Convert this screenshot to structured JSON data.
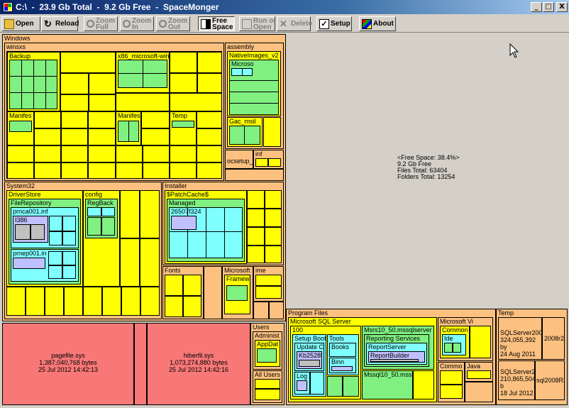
{
  "window": {
    "title": "C:\\  -  23.9 Gb Total  -  9.2 Gb Free  -  SpaceMonger",
    "minimize": "_",
    "maximize": "□",
    "close": "X"
  },
  "toolbar": {
    "open": "Open",
    "reload": "Reload",
    "zoom_full": "Zoom\nFull",
    "zoom_in": "Zoom\nIn",
    "zoom_out": "Zoom\nOut",
    "free_space": "Free\nSpace",
    "run_or_open": "Run or\nOpen",
    "delete": "Delete",
    "setup": "Setup",
    "about": "About"
  },
  "tree": {
    "windows": "Windows",
    "winsxs": "winsxs",
    "backup": "Backup",
    "x86": "x86_microsoft-win",
    "manifests1": "Manifes",
    "manifests2": "Manifes",
    "temp": "Temp",
    "assembly": "assembly",
    "native_images": "NativeImages_v2",
    "microsoft_asm": "Microso",
    "gac_msil": "Gac_msil",
    "ocsetup": "ocsetup_",
    "inf": "inf",
    "system32": "System32",
    "driverstore": "DriverStore",
    "filerepository": "FileRepository",
    "prnca": "prnca001.inf",
    "i386": "I386",
    "prnep": "prnep001.in",
    "config": "config",
    "regback": "RegBack",
    "installer": "Installer",
    "patchcache": "$PatchCache$",
    "managed": "Managed",
    "guid": "26507f324",
    "fonts": "Fonts",
    "microsoft_net": "Microsoft",
    "framework": "Framewo",
    "ime": "ime",
    "users": "Users",
    "administrator": "Administ",
    "appdata": "AppDat",
    "all_users": "All Users",
    "pagefile_name": "pagefile.sys",
    "pagefile_size": "1,387,040,768 bytes",
    "pagefile_date": "25 Jul 2012   14:42:13",
    "hiberfil_name": "hiberfil.sys",
    "hiberfil_size": "1,073,274,880 bytes",
    "hiberfil_date": "25 Jul 2012   14:42:16",
    "program_files": "Program Files",
    "mssql": "Microsoft SQL Server",
    "n100": "100",
    "setup_boot": "Setup Boot",
    "update_ca": "Update Ca",
    "kb": "Kb25285",
    "log": "Log",
    "tools": "Tools",
    "books": "Books",
    "binn": "Binn",
    "msrs": "Msrs10_50.mssqlserver",
    "reporting_services": "Reporting Services",
    "reportserver": "ReportServer",
    "reportbuilder": "ReportBuilder",
    "mssql10": "Mssql10_50.mssq",
    "microsoft_vi": "Microsoft Vi",
    "common": "Common",
    "ide": "Ide",
    "common2": "Commo",
    "java": "Java",
    "temp_root": "Temp",
    "sql1_name": "SQLServer200",
    "sql1_size": "324,055,392 by",
    "sql1_date": "24 Aug 2011   14",
    "sql1b": "2008r2",
    "sql2_name": "SQLServer20",
    "sql2_size": "210,865,504 b",
    "sql2_date": "18 Jul 2012   1",
    "sql2b": "sql2008R2"
  },
  "free": {
    "label": "<Free Space: 38.4%>",
    "amount": "9.2 Gb Free",
    "files": "Files Total:  63404",
    "folders": "Folders Total:  13254"
  }
}
